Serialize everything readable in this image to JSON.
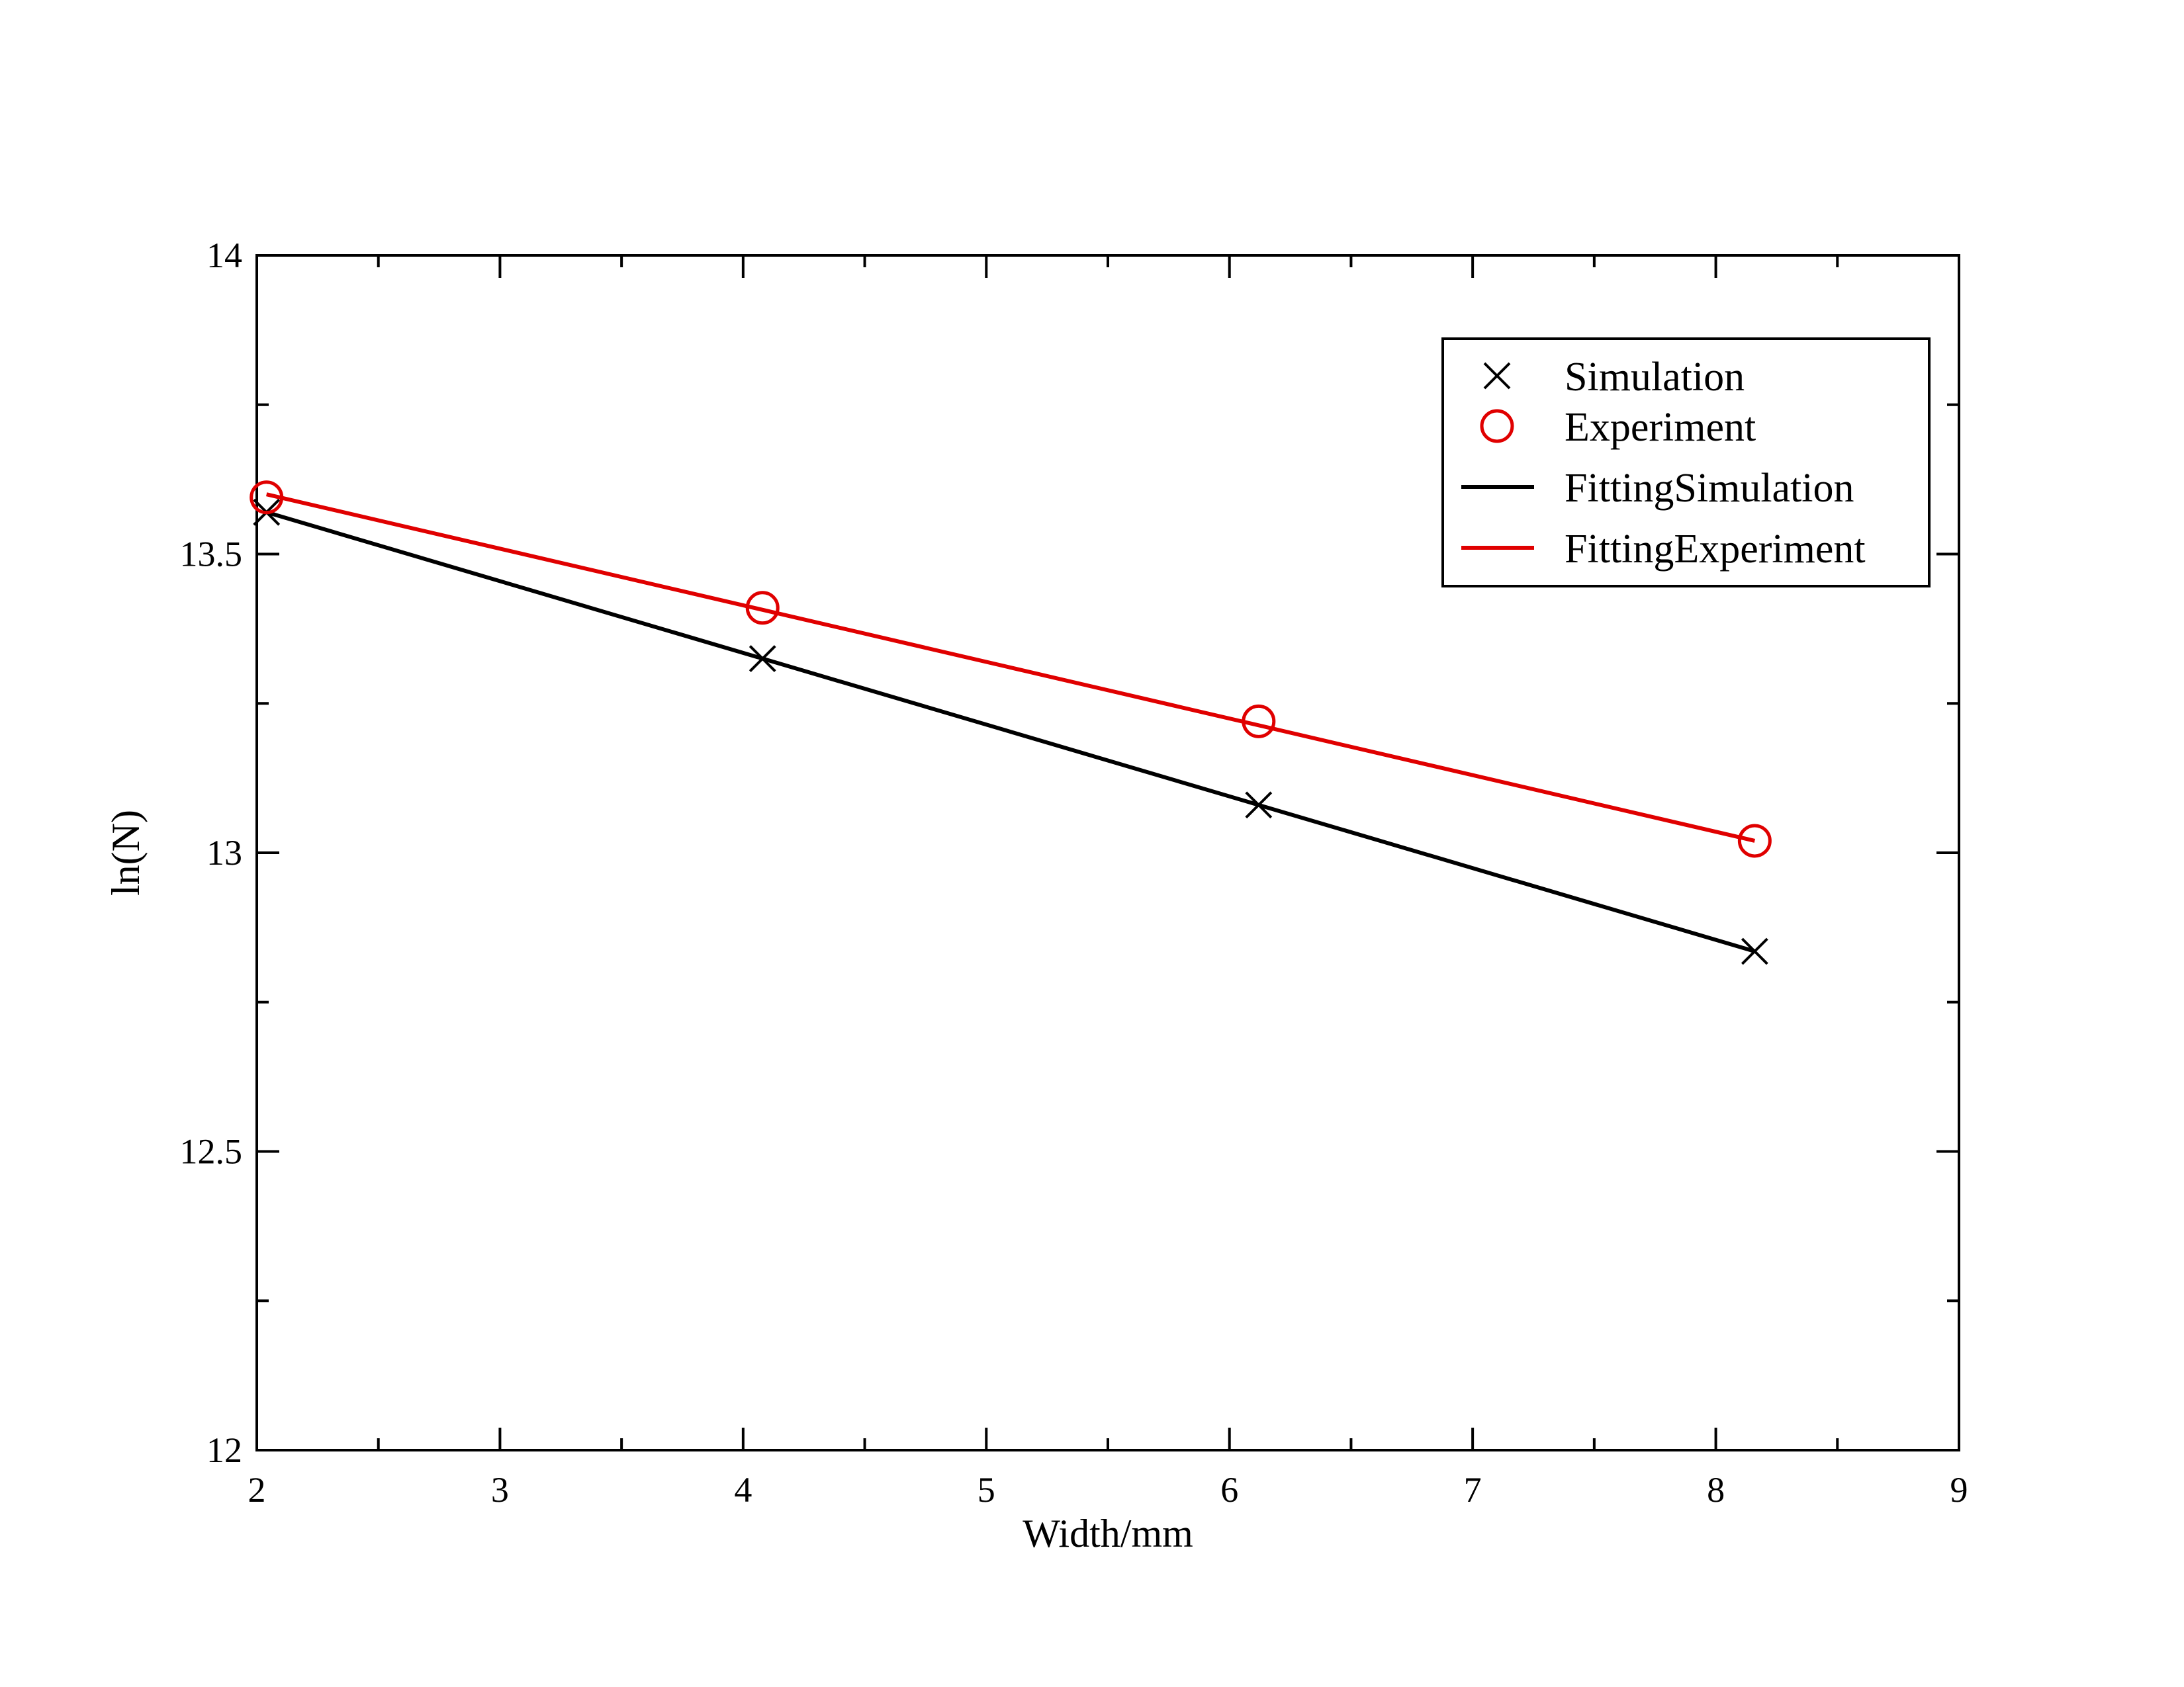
{
  "chart_data": {
    "type": "line",
    "title": "",
    "xlabel": "Width/mm",
    "ylabel": "ln(N)",
    "xlim": [
      2,
      9
    ],
    "ylim": [
      12,
      14
    ],
    "x_ticks": [
      "2",
      "3",
      "4",
      "5",
      "6",
      "7",
      "8",
      "9"
    ],
    "y_ticks": [
      "12",
      "12.5",
      "13",
      "13.5",
      "14"
    ],
    "grid": false,
    "legend_position": "top-right",
    "series": [
      {
        "name": "Simulation",
        "kind": "markers",
        "marker": "x",
        "color": "#000000",
        "x": [
          2.04,
          4.08,
          6.12,
          8.16
        ],
        "y": [
          13.57,
          13.325,
          13.08,
          12.835
        ]
      },
      {
        "name": "Experiment",
        "kind": "markers",
        "marker": "circle",
        "color": "#e00000",
        "x": [
          2.04,
          4.08,
          6.12,
          8.16
        ],
        "y": [
          13.595,
          13.41,
          13.22,
          13.02
        ]
      },
      {
        "name": "FittingSimulation",
        "kind": "line",
        "color": "#000000",
        "x": [
          2.04,
          8.16
        ],
        "y": [
          13.57,
          12.835
        ]
      },
      {
        "name": "FittingExperiment",
        "kind": "line",
        "color": "#e00000",
        "x": [
          2.04,
          8.16
        ],
        "y": [
          13.6,
          13.02
        ]
      }
    ]
  }
}
